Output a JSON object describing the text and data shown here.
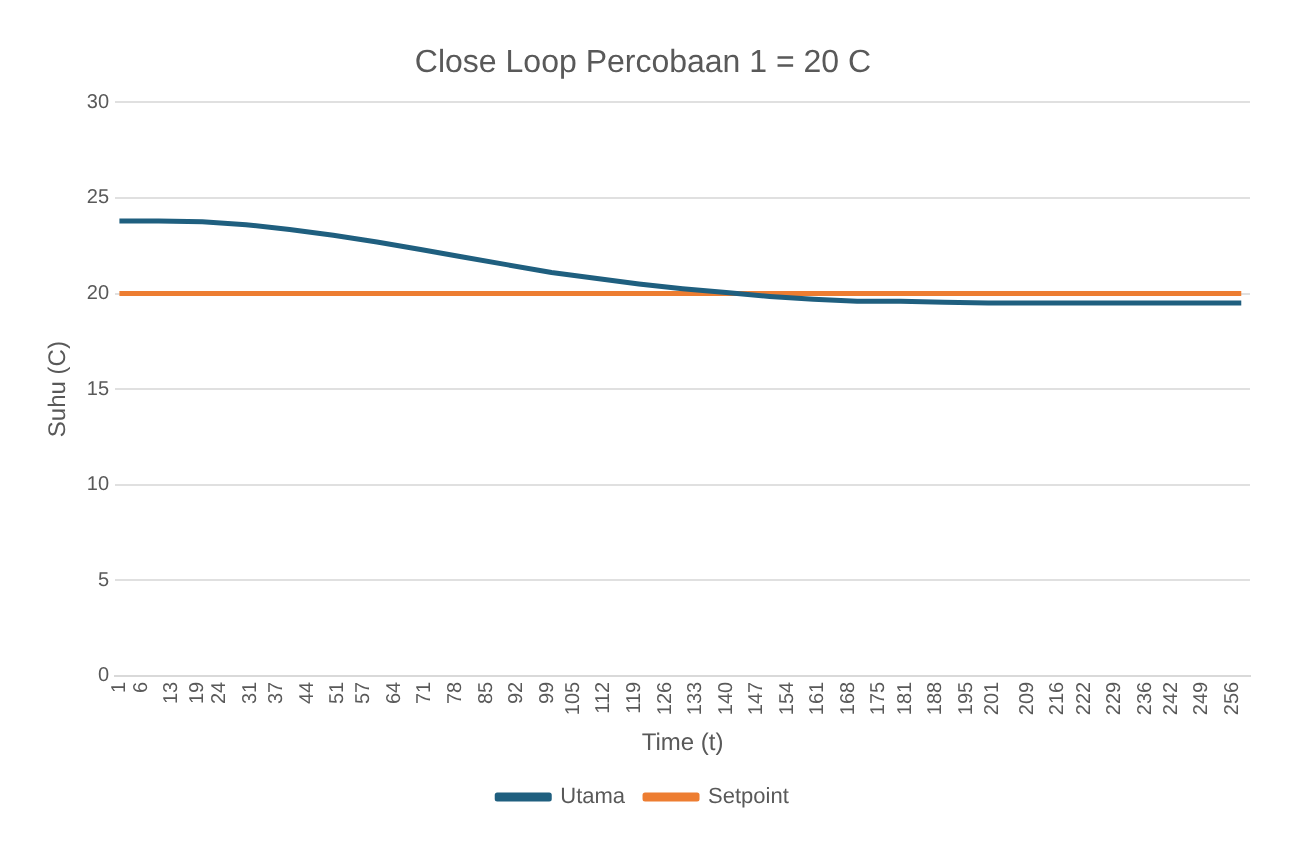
{
  "chart_data": {
    "type": "line",
    "title": "Close Loop Percobaan 1 = 20 C",
    "xlabel": "Time (t)",
    "ylabel": "Suhu (C)",
    "xlim": [
      0,
      260
    ],
    "xticks": [
      1,
      6,
      13,
      19,
      24,
      31,
      37,
      44,
      51,
      57,
      64,
      71,
      78,
      85,
      92,
      99,
      105,
      112,
      119,
      126,
      133,
      140,
      147,
      154,
      161,
      168,
      175,
      181,
      188,
      195,
      201,
      209,
      216,
      222,
      229,
      236,
      242,
      249,
      256
    ],
    "ylim": [
      0,
      30
    ],
    "yticks": [
      0,
      5,
      10,
      15,
      20,
      25,
      30
    ],
    "grid": "y",
    "legend": "bottom",
    "marker": "none",
    "line_style": "solid",
    "series": [
      {
        "name": "Utama",
        "color": "#1f5f7f",
        "x": [
          1,
          10,
          20,
          30,
          40,
          50,
          60,
          70,
          80,
          90,
          100,
          110,
          120,
          130,
          140,
          150,
          160,
          170,
          180,
          190,
          200,
          210,
          220,
          230,
          240,
          250,
          258
        ],
        "values": [
          23.8,
          23.8,
          23.75,
          23.6,
          23.35,
          23.05,
          22.7,
          22.3,
          21.9,
          21.5,
          21.1,
          20.8,
          20.5,
          20.25,
          20.05,
          19.85,
          19.7,
          19.6,
          19.6,
          19.55,
          19.5,
          19.5,
          19.5,
          19.5,
          19.5,
          19.5,
          19.5
        ]
      },
      {
        "name": "Setpoint",
        "color": "#ed7d31",
        "x": [
          1,
          258
        ],
        "values": [
          20,
          20
        ]
      }
    ]
  }
}
